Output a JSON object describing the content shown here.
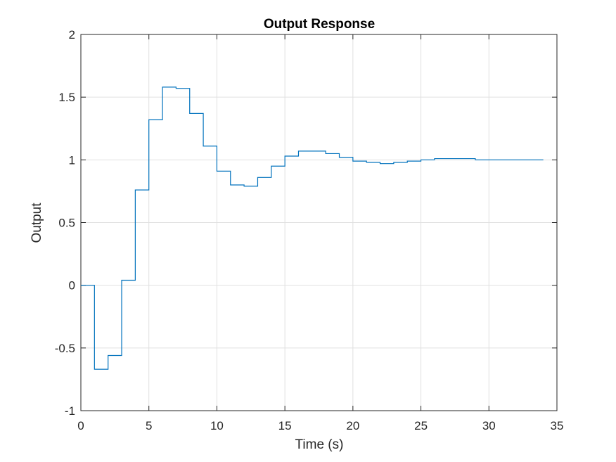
{
  "chart_data": {
    "type": "line",
    "subtype": "stairs",
    "title": "Output Response",
    "xlabel": "Time (s)",
    "ylabel": "Output",
    "xlim": [
      0,
      35
    ],
    "ylim": [
      -1,
      2
    ],
    "xticks": [
      0,
      5,
      10,
      15,
      20,
      25,
      30,
      35
    ],
    "xtick_labels": [
      "0",
      "5",
      "10",
      "15",
      "20",
      "25",
      "30",
      "35"
    ],
    "yticks": [
      -1,
      -0.5,
      0,
      0.5,
      1,
      1.5,
      2
    ],
    "ytick_labels": [
      "-1",
      "-0.5",
      "0",
      "0.5",
      "1",
      "1.5",
      "2"
    ],
    "grid": true,
    "legend": "none",
    "colors": {
      "series": "#0072BD",
      "grid": "#e0e0e0",
      "axis": "#262626"
    },
    "series": [
      {
        "x": [
          0,
          1,
          2,
          3,
          4,
          5,
          6,
          7,
          8,
          9,
          10,
          11,
          12,
          13,
          14,
          15,
          16,
          17,
          18,
          19,
          20,
          21,
          22,
          23,
          24,
          25,
          26,
          27,
          28,
          29,
          30,
          31,
          32,
          33,
          34
        ],
        "values": [
          0,
          -0.67,
          -0.56,
          0.04,
          0.76,
          1.32,
          1.58,
          1.57,
          1.37,
          1.11,
          0.91,
          0.8,
          0.79,
          0.86,
          0.95,
          1.03,
          1.07,
          1.07,
          1.05,
          1.02,
          0.99,
          0.98,
          0.97,
          0.98,
          0.99,
          1.0,
          1.01,
          1.01,
          1.01,
          1.0,
          1.0,
          1.0,
          1.0,
          1.0,
          1.0
        ]
      }
    ]
  }
}
